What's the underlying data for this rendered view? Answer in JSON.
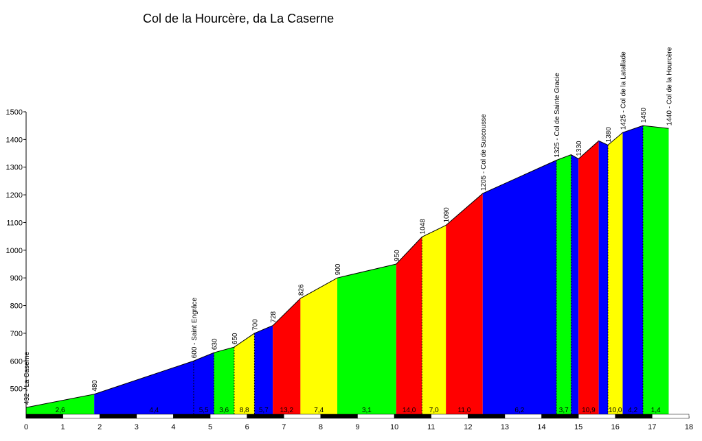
{
  "chart_data": {
    "type": "area",
    "title": "Col de la Hourcère, da La Caserne",
    "xlim": [
      0,
      18
    ],
    "ylim": [
      400,
      1500
    ],
    "x_ticks": [
      "0",
      "1",
      "2",
      "3",
      "4",
      "5",
      "6",
      "7",
      "8",
      "9",
      "10",
      "11",
      "12",
      "13",
      "14",
      "15",
      "16",
      "17",
      "18"
    ],
    "y_ticks": [
      {
        "value": 500,
        "label": "500"
      },
      {
        "value": 600,
        "label": "600"
      },
      {
        "value": 700,
        "label": "700"
      },
      {
        "value": 800,
        "label": "800"
      },
      {
        "value": 900,
        "label": "900"
      },
      {
        "value": 1000,
        "label": "1000"
      },
      {
        "value": 1100,
        "label": "1100"
      },
      {
        "value": 1200,
        "label": "1200"
      },
      {
        "value": 1300,
        "label": "1300"
      },
      {
        "value": 1400,
        "label": "1400"
      },
      {
        "value": 1500,
        "label": "1500"
      }
    ],
    "profile": [
      {
        "x": 0.0,
        "y": 432
      },
      {
        "x": 1.85,
        "y": 480
      },
      {
        "x": 4.55,
        "y": 600
      },
      {
        "x": 5.1,
        "y": 630
      },
      {
        "x": 5.65,
        "y": 650
      },
      {
        "x": 6.2,
        "y": 700
      },
      {
        "x": 6.7,
        "y": 728
      },
      {
        "x": 7.45,
        "y": 826
      },
      {
        "x": 8.45,
        "y": 900
      },
      {
        "x": 10.05,
        "y": 950
      },
      {
        "x": 10.75,
        "y": 1048
      },
      {
        "x": 11.4,
        "y": 1090
      },
      {
        "x": 12.4,
        "y": 1205
      },
      {
        "x": 14.4,
        "y": 1325
      },
      {
        "x": 14.8,
        "y": 1345
      },
      {
        "x": 15.0,
        "y": 1330
      },
      {
        "x": 15.55,
        "y": 1395
      },
      {
        "x": 15.8,
        "y": 1380
      },
      {
        "x": 16.2,
        "y": 1425
      },
      {
        "x": 16.75,
        "y": 1450
      },
      {
        "x": 17.45,
        "y": 1440
      }
    ],
    "segments": [
      {
        "x0": 0.0,
        "x1": 1.85,
        "color": "#00ff00",
        "gradient": "2,6"
      },
      {
        "x0": 1.85,
        "x1": 5.1,
        "color": "#0000ff",
        "gradient": "4,4"
      },
      {
        "x0": 4.55,
        "x1": 5.1,
        "color": "#0000ff",
        "gradient": "5,5"
      },
      {
        "x0": 5.1,
        "x1": 5.65,
        "color": "#00ff00",
        "gradient": "3,6"
      },
      {
        "x0": 5.65,
        "x1": 6.2,
        "color": "#ffff00",
        "gradient": "8,8"
      },
      {
        "x0": 6.2,
        "x1": 6.7,
        "color": "#0000ff",
        "gradient": "5,7"
      },
      {
        "x0": 6.7,
        "x1": 7.45,
        "color": "#ff0000",
        "gradient": "13,2"
      },
      {
        "x0": 7.45,
        "x1": 8.45,
        "color": "#ffff00",
        "gradient": "7,4"
      },
      {
        "x0": 8.45,
        "x1": 10.05,
        "color": "#00ff00",
        "gradient": "3,1"
      },
      {
        "x0": 10.05,
        "x1": 10.75,
        "color": "#ff0000",
        "gradient": "14,0"
      },
      {
        "x0": 10.75,
        "x1": 11.4,
        "color": "#ffff00",
        "gradient": "7,0"
      },
      {
        "x0": 11.4,
        "x1": 12.4,
        "color": "#ff0000",
        "gradient": "11,0"
      },
      {
        "x0": 12.4,
        "x1": 14.4,
        "color": "#0000ff",
        "gradient": "6,2"
      },
      {
        "x0": 14.4,
        "x1": 14.8,
        "color": "#00ff00",
        "gradient": "3,7"
      },
      {
        "x0": 14.8,
        "x1": 15.0,
        "color": "#0000ff",
        "gradient": ""
      },
      {
        "x0": 15.0,
        "x1": 15.55,
        "color": "#ff0000",
        "gradient": "10,9"
      },
      {
        "x0": 15.55,
        "x1": 15.8,
        "color": "#0000ff",
        "gradient": ""
      },
      {
        "x0": 15.8,
        "x1": 16.2,
        "color": "#ffff00",
        "gradient": "10,0"
      },
      {
        "x0": 16.2,
        "x1": 16.75,
        "color": "#0000ff",
        "gradient": "4,2"
      },
      {
        "x0": 16.75,
        "x1": 17.45,
        "color": "#00ff00",
        "gradient": "1,4"
      }
    ],
    "dividers": [
      4.55,
      5.1,
      5.65,
      6.2,
      10.75,
      14.4,
      14.8,
      15.8,
      16.75
    ],
    "point_labels": [
      {
        "x": 0.0,
        "y": 432,
        "text": "432 - La Caserne"
      },
      {
        "x": 1.85,
        "y": 480,
        "text": "480"
      },
      {
        "x": 4.55,
        "y": 600,
        "text": "600 - Saint Engrâce"
      },
      {
        "x": 5.1,
        "y": 630,
        "text": "630"
      },
      {
        "x": 5.65,
        "y": 650,
        "text": "650"
      },
      {
        "x": 6.2,
        "y": 700,
        "text": "700"
      },
      {
        "x": 6.7,
        "y": 728,
        "text": "728"
      },
      {
        "x": 7.45,
        "y": 826,
        "text": "826"
      },
      {
        "x": 8.45,
        "y": 900,
        "text": "900"
      },
      {
        "x": 10.05,
        "y": 950,
        "text": "950"
      },
      {
        "x": 10.75,
        "y": 1048,
        "text": "1048"
      },
      {
        "x": 11.4,
        "y": 1090,
        "text": "1090"
      },
      {
        "x": 12.4,
        "y": 1205,
        "text": "1205 - Col de Suscousse"
      },
      {
        "x": 14.4,
        "y": 1325,
        "text": "1325 - Col de Sainte Gracie"
      },
      {
        "x": 15.0,
        "y": 1330,
        "text": "1330"
      },
      {
        "x": 15.8,
        "y": 1380,
        "text": "1380"
      },
      {
        "x": 16.2,
        "y": 1425,
        "text": "1425 - Col de la Latallade"
      },
      {
        "x": 16.75,
        "y": 1450,
        "text": "1450"
      },
      {
        "x": 17.45,
        "y": 1440,
        "text": "1440 - Col de la Hourcère"
      }
    ],
    "km_bar_colors": [
      "#000000",
      "#ffffff"
    ],
    "grid": false,
    "legend": "none"
  }
}
